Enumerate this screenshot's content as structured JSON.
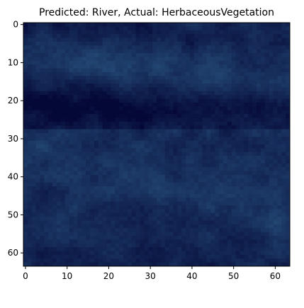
{
  "chart_data": {
    "type": "heatmap",
    "title": "Predicted: River, Actual: HerbaceousVegetation",
    "xlabel": "",
    "ylabel": "",
    "image_size": [
      64,
      64
    ],
    "xlim": [
      -0.5,
      63.5
    ],
    "ylim": [
      63.5,
      -0.5
    ],
    "x_ticks": [
      "0",
      "10",
      "20",
      "30",
      "40",
      "50",
      "60"
    ],
    "y_ticks": [
      "0",
      "10",
      "20",
      "30",
      "40",
      "50",
      "60"
    ],
    "grid": false,
    "dominant_colors": [
      "#0a0f4a",
      "#1c2c6a",
      "#2f4f7f",
      "#07083a"
    ]
  }
}
